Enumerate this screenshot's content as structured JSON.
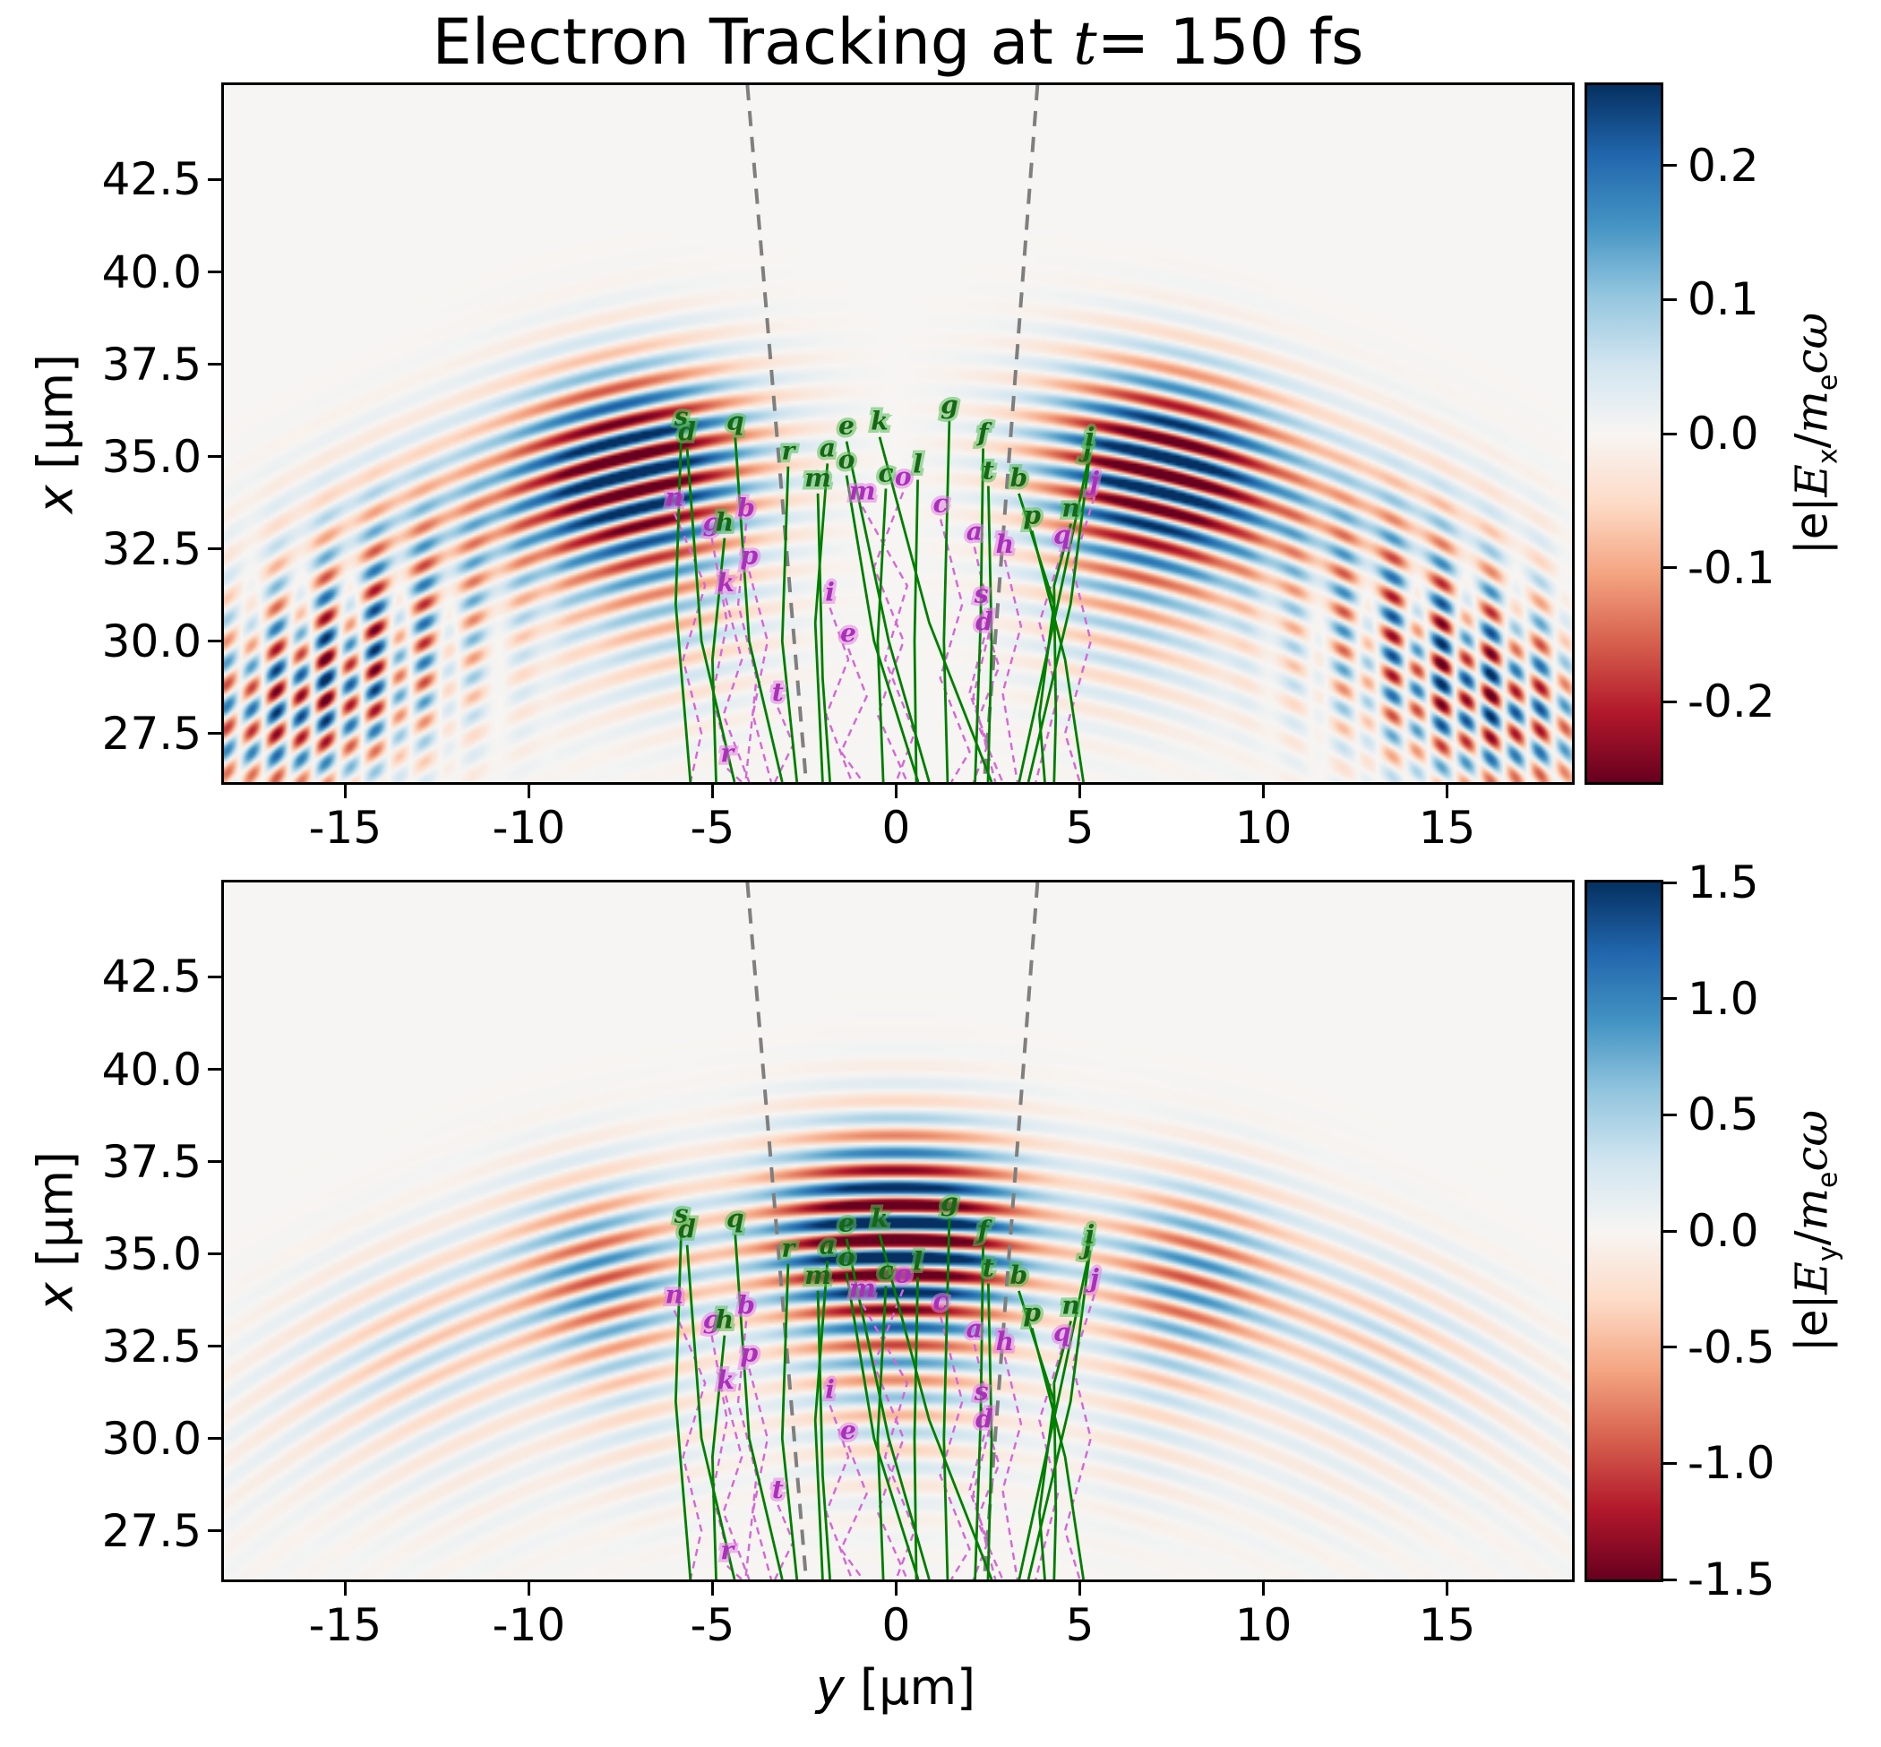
{
  "title": {
    "pre": "Electron Tracking at ",
    "var": "t",
    "post": "= 150 fs"
  },
  "chart_data": {
    "type": "heatmap",
    "time_fs": 150,
    "xlabel": {
      "var": "y",
      "unit": " [µm]"
    },
    "ylabel": {
      "var": "x",
      "unit": " [µm]"
    },
    "axes": {
      "xlim": [
        -18.3,
        18.4
      ],
      "ylim": [
        26.18,
        45.06
      ],
      "x_ticks": [
        -15,
        -10,
        -5,
        0,
        5,
        10,
        15
      ],
      "x_tick_labels": [
        "-15",
        "-10",
        "-5",
        "0",
        "5",
        "10",
        "15"
      ],
      "y_ticks": [
        42.5,
        40.0,
        37.5,
        35.0,
        32.5,
        30.0,
        27.5
      ],
      "y_tick_labels": [
        "42.5",
        "40.0",
        "37.5",
        "35.0",
        "32.5",
        "30.0",
        "27.5"
      ],
      "grid": false
    },
    "panels": [
      {
        "id": "Ex",
        "clim": [
          -0.26,
          0.26
        ],
        "ctick_values": [
          0.2,
          0.1,
          0.0,
          -0.1,
          -0.2
        ],
        "ctick_labels": [
          "0.2",
          "0.1",
          "0.0",
          "-0.1",
          "-0.2"
        ],
        "cbar_label": {
          "p1": "|e|",
          "p2": "E",
          "sub1": "x",
          "p3": "/",
          "p4": "m",
          "sub2": "e",
          "p5": "cω"
        }
      },
      {
        "id": "Ey",
        "clim": [
          -1.5,
          1.5
        ],
        "ctick_values": [
          1.5,
          1.0,
          0.5,
          0.0,
          -0.5,
          -1.0,
          -1.5
        ],
        "ctick_labels": [
          "1.5",
          "1.0",
          "0.5",
          "0.0",
          "-0.5",
          "-1.0",
          "-1.5"
        ],
        "cbar_label": {
          "p1": "|e|",
          "p2": "E",
          "sub1": "y",
          "p3": "/",
          "p4": "m",
          "sub2": "e",
          "p5": "cω"
        }
      }
    ],
    "colormap": {
      "name": "RdBu",
      "stops": [
        "#67001f",
        "#b2182b",
        "#d6604d",
        "#f4a582",
        "#fddbc7",
        "#f7f5f3",
        "#d1e5f0",
        "#92c5de",
        "#4393c3",
        "#2166ac",
        "#053061"
      ]
    },
    "field_model": {
      "arc_center_x": 4.5,
      "wavelength": 0.95,
      "radial_peak": 31.0,
      "radial_sigma": 2.6,
      "inner_tail_r": 27.0,
      "inner_tail_sigma": 2.8,
      "inner_tail_amp": 0.22,
      "Ex": {
        "lobe_theta": 0.235,
        "lobe_sigma": 0.1,
        "wing_theta": 0.45,
        "wing_sigma": 0.12,
        "wing_amp": 0.3,
        "baseline": 0.04,
        "odd_scale": 0.05,
        "hatch_theta": 0.58,
        "hatch_sigma": 0.14,
        "hatch_amp": 0.85,
        "hatch_r": 28.8,
        "hatch_rsigma": 2.6,
        "hatch_ky": 1.35,
        "gain": 1.25
      },
      "Ey": {
        "center_amp": 1.45,
        "center_sigma": 0.105,
        "side_theta": 0.26,
        "side_sigma": 0.075,
        "side_amp": 0.55,
        "wing_theta": 0.43,
        "wing_sigma": 0.12,
        "wing_amp": 0.22,
        "baseline": 0.05,
        "gain": 1.0
      }
    },
    "beam_cone": {
      "color": "#7f7f7f",
      "left": [
        [
          -4.05,
          45.06
        ],
        [
          -2.45,
          26.18
        ]
      ],
      "right": [
        [
          3.85,
          45.06
        ],
        [
          2.4,
          26.18
        ]
      ]
    },
    "track_colors": {
      "green_line": "#007f00",
      "green_label": "#156615",
      "green_halo": "rgba(90,190,90,0.55)",
      "magenta_line": "#d567d5",
      "magenta_label": "#aa30bb",
      "magenta_halo": "rgba(225,130,225,0.55)"
    },
    "trajectories": {
      "green_solid": [
        {
          "label": "s",
          "points": [
            [
              -5.85,
              35.66
            ],
            [
              -6.0,
              31.0
            ],
            [
              -5.6,
              26.18
            ]
          ]
        },
        {
          "label": "d",
          "points": [
            [
              -5.69,
              35.24
            ],
            [
              -5.3,
              30.0
            ],
            [
              -4.4,
              26.18
            ]
          ]
        },
        {
          "label": "q",
          "points": [
            [
              -4.38,
              35.53
            ],
            [
              -4.0,
              30.0
            ],
            [
              -3.1,
              26.18
            ]
          ]
        },
        {
          "label": "h",
          "points": [
            [
              -4.67,
              32.79
            ],
            [
              -5.0,
              29.5
            ],
            [
              -4.9,
              26.18
            ]
          ]
        },
        {
          "label": "r",
          "points": [
            [
              -2.94,
              34.73
            ],
            [
              -3.1,
              30.0
            ],
            [
              -2.7,
              26.18
            ]
          ]
        },
        {
          "label": "a",
          "points": [
            [
              -1.87,
              34.81
            ],
            [
              -2.2,
              30.5
            ],
            [
              -2.0,
              26.18
            ]
          ]
        },
        {
          "label": "m",
          "points": [
            [
              -2.13,
              34.0
            ],
            [
              -2.0,
              29.0
            ],
            [
              -1.8,
              26.18
            ]
          ]
        },
        {
          "label": "o",
          "points": [
            [
              -1.35,
              34.49
            ],
            [
              -0.6,
              30.0
            ],
            [
              0.6,
              26.18
            ]
          ]
        },
        {
          "label": "e",
          "points": [
            [
              -1.35,
              35.41
            ],
            [
              -0.2,
              30.0
            ],
            [
              0.9,
              26.18
            ]
          ]
        },
        {
          "label": "k",
          "points": [
            [
              -0.45,
              35.53
            ],
            [
              0.9,
              30.5
            ],
            [
              2.6,
              26.18
            ]
          ]
        },
        {
          "label": "c",
          "points": [
            [
              -0.28,
              34.13
            ],
            [
              -0.5,
              30.0
            ],
            [
              -0.35,
              26.18
            ]
          ]
        },
        {
          "label": "l",
          "points": [
            [
              0.59,
              34.37
            ],
            [
              0.5,
              30.0
            ],
            [
              0.55,
              26.18
            ]
          ]
        },
        {
          "label": "g",
          "points": [
            [
              1.45,
              35.97
            ],
            [
              1.3,
              30.0
            ],
            [
              1.4,
              26.18
            ]
          ]
        },
        {
          "label": "f",
          "points": [
            [
              2.37,
              35.22
            ],
            [
              2.3,
              30.5
            ],
            [
              2.15,
              26.18
            ]
          ]
        },
        {
          "label": "t",
          "points": [
            [
              2.51,
              34.2
            ],
            [
              2.6,
              30.0
            ],
            [
              2.5,
              26.18
            ]
          ]
        },
        {
          "label": "b",
          "points": [
            [
              3.34,
              34.0
            ],
            [
              4.3,
              31.0
            ],
            [
              3.9,
              28.0
            ],
            [
              4.05,
              26.18
            ]
          ]
        },
        {
          "label": "p",
          "points": [
            [
              3.7,
              32.99
            ],
            [
              4.6,
              29.5
            ],
            [
              5.1,
              26.18
            ]
          ]
        },
        {
          "label": "n",
          "points": [
            [
              4.76,
              33.18
            ],
            [
              4.3,
              31.5
            ],
            [
              4.35,
              28.0
            ],
            [
              4.3,
              26.18
            ]
          ]
        },
        {
          "label": "j",
          "points": [
            [
              5.21,
              34.81
            ],
            [
              4.4,
              31.0
            ],
            [
              3.35,
              26.18
            ]
          ]
        },
        {
          "label": "i",
          "points": [
            [
              5.28,
              35.1
            ],
            [
              4.75,
              31.0
            ],
            [
              3.6,
              26.18
            ]
          ]
        }
      ],
      "magenta_dashed": [
        {
          "label": "n",
          "points": [
            [
              -6.04,
              33.47
            ],
            [
              -5.2,
              31.5
            ],
            [
              -5.8,
              29.5
            ],
            [
              -5.3,
              27.5
            ],
            [
              -5.6,
              26.18
            ]
          ]
        },
        {
          "label": "b",
          "points": [
            [
              -4.08,
              33.18
            ],
            [
              -4.3,
              31.0
            ],
            [
              -3.8,
              29.0
            ],
            [
              -4.1,
              26.18
            ]
          ]
        },
        {
          "label": "g",
          "points": [
            [
              -5.02,
              32.79
            ],
            [
              -4.6,
              30.5
            ],
            [
              -5.0,
              28.5
            ],
            [
              -4.4,
              26.18
            ]
          ]
        },
        {
          "label": "p",
          "points": [
            [
              -4.0,
              31.89
            ],
            [
              -3.5,
              30.0
            ],
            [
              -3.9,
              28.0
            ],
            [
              -3.4,
              26.18
            ]
          ]
        },
        {
          "label": "k",
          "points": [
            [
              -4.64,
              31.16
            ],
            [
              -4.2,
              29.5
            ],
            [
              -4.7,
              28.0
            ],
            [
              -4.0,
              26.18
            ]
          ]
        },
        {
          "label": "m",
          "points": [
            [
              -0.92,
              33.64
            ],
            [
              0.3,
              31.5
            ],
            [
              -0.3,
              29.5
            ],
            [
              0.5,
              27.5
            ],
            [
              0.0,
              26.18
            ]
          ]
        },
        {
          "label": "o",
          "points": [
            [
              0.19,
              34.03
            ],
            [
              -0.6,
              32.0
            ],
            [
              0.2,
              30.0
            ],
            [
              -0.5,
              28.0
            ],
            [
              0.3,
              26.18
            ]
          ]
        },
        {
          "label": "c",
          "points": [
            [
              1.21,
              33.3
            ],
            [
              1.8,
              31.0
            ],
            [
              1.2,
              29.0
            ],
            [
              2.0,
              27.0
            ],
            [
              1.5,
              26.18
            ]
          ]
        },
        {
          "label": "i",
          "points": [
            [
              -1.8,
              30.9
            ],
            [
              -1.3,
              29.5
            ],
            [
              -1.9,
              28.0
            ],
            [
              -1.2,
              26.18
            ]
          ]
        },
        {
          "label": "e",
          "points": [
            [
              -1.3,
              29.8
            ],
            [
              -0.8,
              28.5
            ],
            [
              -1.5,
              27.0
            ],
            [
              -0.9,
              26.18
            ]
          ]
        },
        {
          "label": "t",
          "points": [
            [
              -3.22,
              28.2
            ],
            [
              -2.8,
              27.2
            ],
            [
              -3.3,
              26.18
            ]
          ]
        },
        {
          "label": "r",
          "points": [
            [
              -4.6,
              26.55
            ],
            [
              -4.2,
              26.18
            ]
          ]
        },
        {
          "label": "s",
          "points": [
            [
              2.32,
              30.85
            ],
            [
              2.8,
              29.3
            ],
            [
              2.2,
              27.8
            ],
            [
              2.9,
              26.18
            ]
          ]
        },
        {
          "label": "a",
          "points": [
            [
              2.13,
              32.55
            ],
            [
              2.6,
              30.5
            ],
            [
              2.1,
              28.5
            ],
            [
              2.7,
              26.18
            ]
          ]
        },
        {
          "label": "d",
          "points": [
            [
              2.4,
              30.1
            ],
            [
              2.0,
              28.6
            ],
            [
              2.5,
              27.2
            ],
            [
              2.1,
              26.18
            ]
          ]
        },
        {
          "label": "q",
          "points": [
            [
              4.52,
              32.45
            ],
            [
              3.9,
              30.5
            ],
            [
              4.4,
              28.5
            ],
            [
              3.8,
              26.18
            ]
          ]
        },
        {
          "label": "j",
          "points": [
            [
              5.4,
              33.91
            ],
            [
              4.8,
              32.0
            ],
            [
              5.3,
              30.0
            ],
            [
              4.6,
              27.5
            ],
            [
              5.0,
              26.18
            ]
          ]
        },
        {
          "label": "h",
          "points": [
            [
              2.96,
              32.2
            ],
            [
              3.4,
              30.4
            ],
            [
              2.9,
              28.6
            ],
            [
              3.3,
              26.18
            ]
          ]
        }
      ]
    }
  }
}
